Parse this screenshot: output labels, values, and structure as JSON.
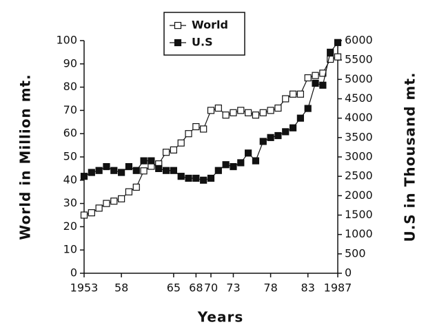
{
  "chart_data": {
    "type": "line",
    "x": [
      1953,
      1954,
      1955,
      1956,
      1957,
      1958,
      1959,
      1960,
      1961,
      1962,
      1963,
      1964,
      1965,
      1966,
      1967,
      1968,
      1969,
      1970,
      1971,
      1972,
      1973,
      1974,
      1975,
      1976,
      1977,
      1978,
      1979,
      1980,
      1981,
      1982,
      1983,
      1984,
      1985,
      1986,
      1987
    ],
    "series": [
      {
        "name": "World",
        "color": "#111111",
        "marker": "open-square",
        "values": [
          25,
          26,
          28,
          30,
          31,
          32,
          35,
          37,
          44,
          46,
          47,
          52,
          53,
          56,
          60,
          63,
          62,
          70,
          71,
          68,
          69,
          70,
          69,
          68,
          69,
          70,
          71,
          75,
          77,
          77,
          84,
          85,
          86,
          92,
          93
        ]
      },
      {
        "name": "U.S",
        "color": "#111111",
        "marker": "filled-square",
        "axis": "y2",
        "values": [
          2500,
          2600,
          2650,
          2750,
          2650,
          2600,
          2750,
          2650,
          2900,
          2900,
          2700,
          2650,
          2650,
          2500,
          2450,
          2450,
          2400,
          2450,
          2650,
          2800,
          2750,
          2850,
          3100,
          2900,
          3400,
          3500,
          3550,
          3650,
          3750,
          4000,
          4250,
          4900,
          4850,
          5700,
          5950
        ]
      }
    ],
    "xlabel": "Years",
    "ylabel": "World in Million mt.",
    "y2label": "U.S in Thousand mt.",
    "xlim": [
      1953,
      1987
    ],
    "xticks": [
      1953,
      {
        "value": 1958,
        "label": "58"
      },
      {
        "value": 1965,
        "label": "65"
      },
      {
        "value": 1968,
        "label": "68"
      },
      {
        "value": 1970,
        "label": "70"
      },
      {
        "value": 1973,
        "label": "73"
      },
      {
        "value": 1978,
        "label": "78"
      },
      {
        "value": 1983,
        "label": "83"
      },
      1987
    ],
    "ylim": [
      0,
      100
    ],
    "yticks": [
      0,
      10,
      20,
      30,
      40,
      50,
      60,
      70,
      80,
      90,
      100
    ],
    "y2lim": [
      0,
      6000
    ],
    "y2ticks": [
      0,
      500,
      1000,
      1500,
      2000,
      2500,
      3000,
      3500,
      4000,
      4500,
      5000,
      5500,
      6000
    ],
    "legend": "top"
  }
}
